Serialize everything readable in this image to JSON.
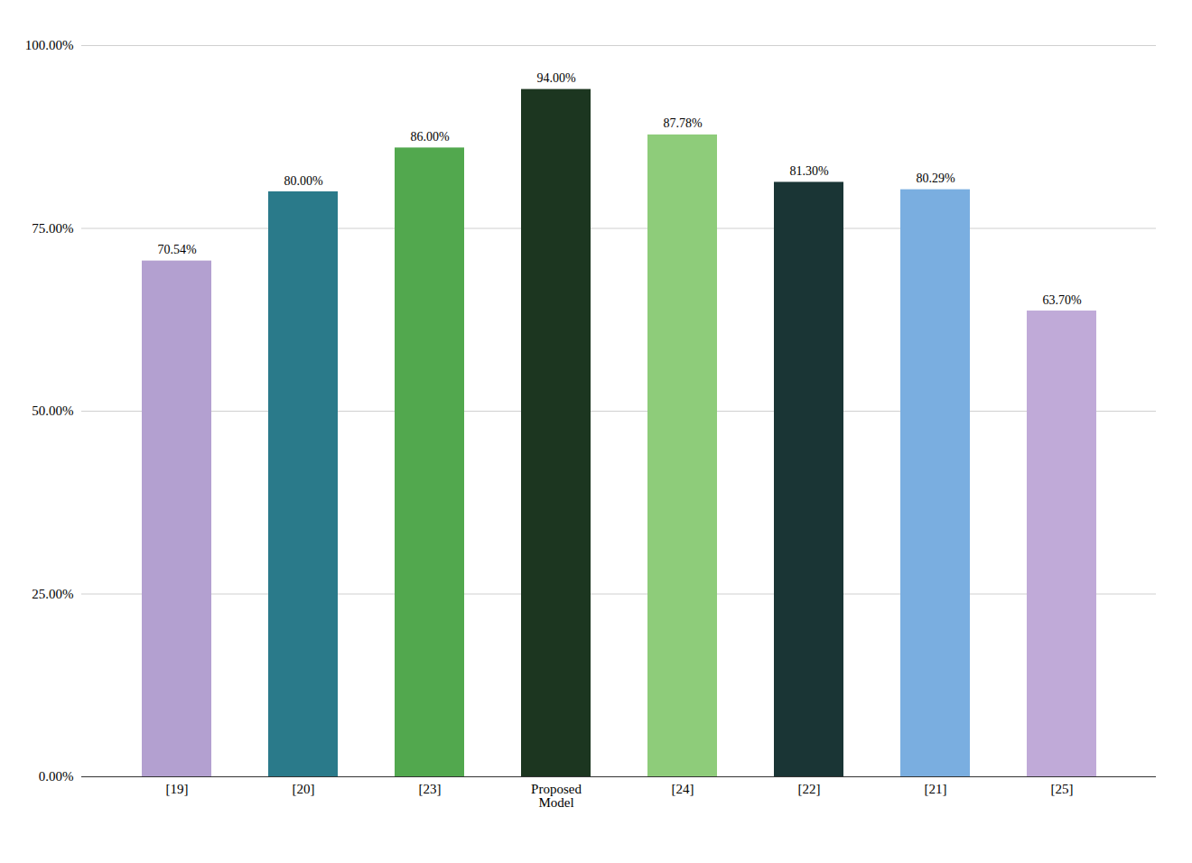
{
  "chart_data": {
    "type": "bar",
    "categories": [
      "[19]",
      "[20]",
      "[23]",
      "Proposed\nModel",
      "[24]",
      "[22]",
      "[21]",
      "[25]"
    ],
    "values": [
      70.54,
      80.0,
      86.0,
      94.0,
      87.78,
      81.3,
      80.29,
      63.7
    ],
    "value_labels": [
      "70.54%",
      "80.00%",
      "86.00%",
      "94.00%",
      "87.78%",
      "81.30%",
      "80.29%",
      "63.70%"
    ],
    "colors": [
      "#b3a0d0",
      "#2a7a8a",
      "#52a84e",
      "#1c3620",
      "#8ecc7a",
      "#1a3535",
      "#7aaee0",
      "#c0aad8"
    ],
    "ylim": [
      0,
      100
    ],
    "yticks": [
      {
        "value": 0,
        "label": "0.00%"
      },
      {
        "value": 25,
        "label": "25.00%"
      },
      {
        "value": 50,
        "label": "50.00%"
      },
      {
        "value": 75,
        "label": "75.00%"
      },
      {
        "value": 100,
        "label": "100.00%"
      }
    ],
    "grid": true,
    "data_labels": true
  }
}
